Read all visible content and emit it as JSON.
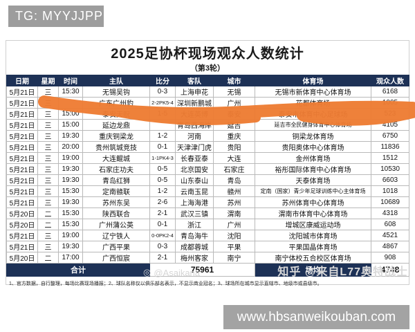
{
  "badges": {
    "top": "TG: MYYJJPP",
    "site": "www.hbsanweikouban.com"
  },
  "table": {
    "title": "2025足协杯现场观众人数统计",
    "subtitle": "（第3轮）",
    "columns": [
      "日期",
      "星期",
      "时间",
      "主队",
      "比分",
      "客队",
      "城市",
      "体育场",
      "观众人数"
    ],
    "rows": [
      [
        "5月21日",
        "三",
        "15:30",
        "无锡吴钩",
        "0-3",
        "上海申花",
        "无锡",
        "无锡市新体育中心体育场",
        "6168"
      ],
      [
        "5月21日",
        "三",
        "",
        "广东广州豹",
        "2-2PK5-4",
        "深圳新鹏城",
        "广州",
        "花都体育场",
        "1005"
      ],
      [
        "5月21日",
        "三",
        "15:00",
        "泰安天贶",
        "1-5",
        "大连英博",
        "泰安",
        "泰安市体育中心足球场",
        "523"
      ],
      [
        "5月21日",
        "三",
        "15:00",
        "延边龙鼎",
        "",
        "青岛西海岸",
        "延吉",
        "延吉市全民健身体育中心体育场",
        "4105"
      ],
      [
        "5月21日",
        "三",
        "19:30",
        "重庆铜梁龙",
        "1-2",
        "河南",
        "重庆",
        "铜梁龙体育场",
        "6750"
      ],
      [
        "5月21日",
        "三",
        "20:00",
        "贵州筑城竞技",
        "0-1",
        "天津津门虎",
        "贵阳",
        "贵阳奥体中心体育场",
        "11836"
      ],
      [
        "5月21日",
        "三",
        "19:00",
        "大连鲲城",
        "1-1PK4-3",
        "长春亚泰",
        "大连",
        "金州体育场",
        "1512"
      ],
      [
        "5月21日",
        "三",
        "19:30",
        "石家庄功夫",
        "0-5",
        "北京国安",
        "石家庄",
        "裕彤国际体育中心体育场",
        "10530"
      ],
      [
        "5月21日",
        "三",
        "19:30",
        "青岛红狮",
        "0-5",
        "山东泰山",
        "青岛",
        "天泰体育场",
        "6603"
      ],
      [
        "5月21日",
        "三",
        "15:30",
        "定南赣联",
        "1-2",
        "云南玉昆",
        "赣州",
        "定南（国家）青少年足球训练中心主体育场",
        "1018"
      ],
      [
        "5月21日",
        "三",
        "19:30",
        "苏州东吴",
        "2-6",
        "上海海港",
        "苏州",
        "苏州体育中心体育场",
        "10689"
      ],
      [
        "5月20日",
        "二",
        "15:30",
        "陕西联合",
        "2-1",
        "武汉三镇",
        "渭南",
        "渭南市体育中心体育场",
        "4318"
      ],
      [
        "5月20日",
        "二",
        "15:30",
        "广州蒲公英",
        "0-1",
        "浙江",
        "广州",
        "增城区康威运动场",
        "608"
      ],
      [
        "5月21日",
        "三",
        "19:00",
        "辽宁铁人",
        "0-0PK2-4",
        "青岛海牛",
        "沈阳",
        "沈阳城市体育场",
        "4521"
      ],
      [
        "5月21日",
        "三",
        "19:30",
        "广西平果",
        "0-3",
        "成都蓉城",
        "平果",
        "平果国晶体育场",
        "4867"
      ],
      [
        "5月20日",
        "二",
        "17:00",
        "广西恒宸",
        "2-1",
        "梅州客家",
        "南宁",
        "南宁体校五合校区体育场",
        "908"
      ]
    ],
    "total": {
      "label": "合计",
      "total_value": "75961",
      "avg_label": "场均",
      "avg_value": "4748"
    },
    "footnote": "1、官方数据，自行整理，每场比赛现场播报；2、球队名称仅以俱乐部名表示，不显示商业冠名；3、球场所在城市显示直辖市、地级市或县级市。"
  },
  "watermarks": {
    "center": "@Asaikana",
    "right": "知乎 @来自L77奥特战士"
  },
  "colors": {
    "header_bg": "#1d3156",
    "marker_orange": "#ee7c33",
    "badge_gray": "#9d9d9d"
  }
}
